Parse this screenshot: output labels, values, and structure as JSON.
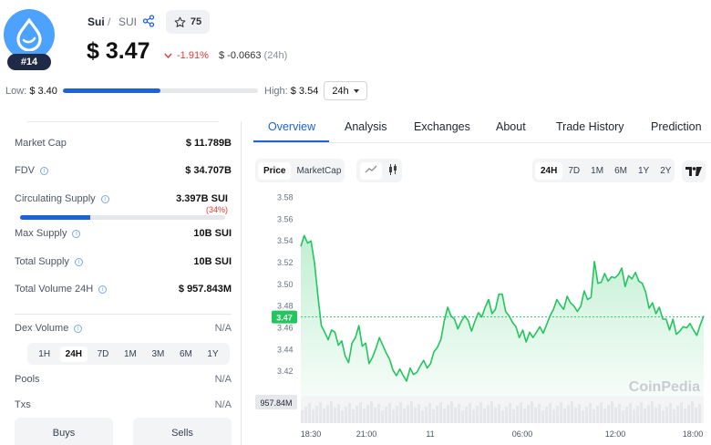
{
  "coin": {
    "name": "Sui",
    "separator": "/",
    "symbol": "SUI",
    "rank": "#14",
    "watchlist_count": "75",
    "price": "$ 3.47",
    "change_pct": "-1.91%",
    "change_abs": "$ -0.0663",
    "change_period": "(24h)"
  },
  "range": {
    "low_label": "Low:",
    "low_value": "$ 3.40",
    "high_label": "High:",
    "high_value": "$ 3.54",
    "period": "24h",
    "fill_fraction": 0.5
  },
  "stats": [
    {
      "label": "Market Cap",
      "value": "$ 11.789B",
      "info": false
    },
    {
      "label": "FDV",
      "value": "$ 34.707B",
      "info": true
    },
    {
      "label": "Circulating Supply",
      "value": "3.397B SUI",
      "info": true
    },
    {
      "label": "Max Supply",
      "value": "10B SUI",
      "info": true
    },
    {
      "label": "Total Supply",
      "value": "10B SUI",
      "info": true
    },
    {
      "label": "Total Volume 24H",
      "value": "$ 957.843M",
      "info": true
    }
  ],
  "circulating_pct": "(34%)",
  "circulating_fraction": 0.34,
  "dex": {
    "label": "Dex Volume",
    "value": "N/A",
    "periods": [
      "1H",
      "24H",
      "7D",
      "1M",
      "3M",
      "6M",
      "1Y"
    ],
    "active_period": "24H",
    "pools_label": "Pools",
    "pools_value": "N/A",
    "txs_label": "Txs",
    "txs_value": "N/A",
    "buys_label": "Buys",
    "sells_label": "Sells"
  },
  "tabs": [
    "Overview",
    "Analysis",
    "Exchanges",
    "About",
    "Trade History",
    "Prediction"
  ],
  "active_tab": "Overview",
  "chart_controls": {
    "metrics": [
      "Price",
      "MarketCap"
    ],
    "active_metric": "Price",
    "timeframes": [
      "24H",
      "7D",
      "1M",
      "6M",
      "1Y",
      "2Y"
    ],
    "active_timeframe": "24H",
    "line_icon": "line-chart-icon",
    "candle_icon": "candlestick-icon",
    "provider_icon": "tradingview-icon"
  },
  "chart_data": {
    "type": "area",
    "title": "",
    "xlabel": "",
    "ylabel": "",
    "yticks": [
      "3.58",
      "3.56",
      "3.54",
      "3.52",
      "3.50",
      "3.48",
      "3.46",
      "3.44",
      "3.42"
    ],
    "ylim": [
      3.405,
      3.583
    ],
    "xticks": [
      "18:30",
      "21:00",
      "11",
      "06:00",
      "12:00",
      "18:00"
    ],
    "current_price_label": "3.47",
    "volume_label": "957.84M",
    "watermark": "CoinPedia",
    "grid": false,
    "color": "#22c55e",
    "series": [
      {
        "values": [
          3.535,
          3.545,
          3.538,
          3.54,
          3.52,
          3.49,
          3.462,
          3.456,
          3.449,
          3.458,
          3.456,
          3.444,
          3.448,
          3.434,
          3.428,
          3.446,
          3.451,
          3.462,
          3.443,
          3.446,
          3.427,
          3.433,
          3.441,
          3.451,
          3.444,
          3.437,
          3.431,
          3.421,
          3.416,
          3.422,
          3.416,
          3.411,
          3.423,
          3.417,
          3.419,
          3.425,
          3.43,
          3.423,
          3.427,
          3.438,
          3.442,
          3.449,
          3.466,
          3.479,
          3.471,
          3.468,
          3.459,
          3.466,
          3.471,
          3.467,
          3.457,
          3.466,
          3.474,
          3.47,
          3.479,
          3.486,
          3.473,
          3.477,
          3.491,
          3.491,
          3.475,
          3.471,
          3.465,
          3.461,
          3.451,
          3.458,
          3.447,
          3.456,
          3.451,
          3.456,
          3.461,
          3.455,
          3.463,
          3.471,
          3.477,
          3.486,
          3.481,
          3.477,
          3.489,
          3.483,
          3.48,
          3.475,
          3.48,
          3.494,
          3.486,
          3.488,
          3.521,
          3.501,
          3.502,
          3.51,
          3.503,
          3.507,
          3.506,
          3.509,
          3.515,
          3.498,
          3.508,
          3.505,
          3.511,
          3.503,
          3.501,
          3.493,
          3.478,
          3.483,
          3.473,
          3.479,
          3.468,
          3.468,
          3.458,
          3.468,
          3.454,
          3.457,
          3.461,
          3.46,
          3.464,
          3.458,
          3.453,
          3.463,
          3.471
        ]
      }
    ]
  }
}
